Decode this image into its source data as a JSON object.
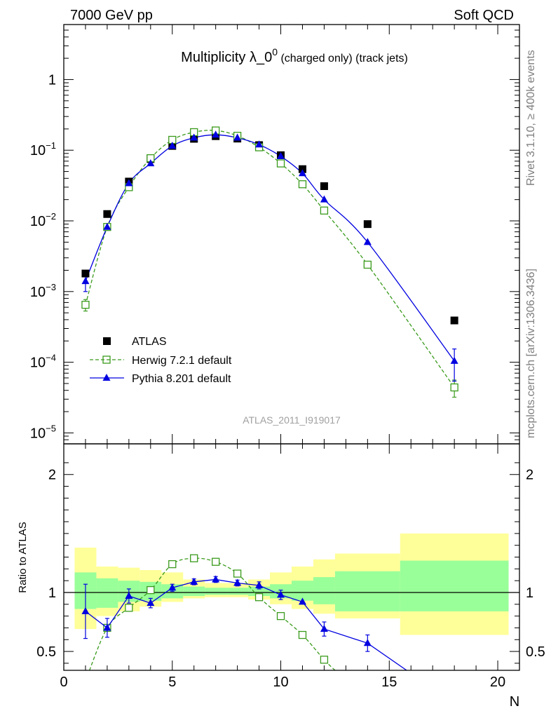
{
  "header": {
    "left": "7000 GeV pp",
    "right": "Soft QCD"
  },
  "side": {
    "rivet": "Rivet 3.1.10, ≥ 400k events",
    "mcplots": "mcplots.cern.ch [arXiv:1306.3436]"
  },
  "chart_data": [
    {
      "type": "scatter",
      "title_main": "Multiplicity λ_0",
      "title_sup": "0",
      "title_tail": " (charged only) (track jets)",
      "analysis_label": "ATLAS_2011_I919017",
      "xlabel": "N",
      "ylabel": "",
      "log_y": true,
      "xlim": [
        0,
        21
      ],
      "ylim": [
        7e-06,
        6
      ],
      "y_ticks": [
        "10^-5",
        "10^-4",
        "10^-3",
        "10^-2",
        "10^-1",
        "1"
      ],
      "legend_position": "lower-left",
      "series": [
        {
          "name": "ATLAS",
          "color": "#000000",
          "marker": "filled-square",
          "x": [
            1,
            2,
            3,
            4,
            5,
            6,
            7,
            8,
            9,
            10,
            11,
            12,
            14,
            18
          ],
          "y": [
            0.0018,
            0.0125,
            0.036,
            0.075,
            0.115,
            0.145,
            0.158,
            0.146,
            0.118,
            0.085,
            0.054,
            0.031,
            0.009,
            0.00039
          ]
        },
        {
          "name": "Herwig 7.2.1 default",
          "color": "#3a9a1c",
          "marker": "open-square",
          "line": "dashed",
          "x": [
            1,
            2,
            3,
            4,
            5,
            6,
            7,
            8,
            9,
            10,
            11,
            12,
            14,
            18
          ],
          "y": [
            0.00065,
            0.0082,
            0.03,
            0.077,
            0.14,
            0.18,
            0.19,
            0.16,
            0.11,
            0.065,
            0.033,
            0.014,
            0.0024,
            4.4e-05
          ],
          "yerr": [
            0.00012,
            0,
            0,
            0,
            0,
            0,
            0,
            0,
            0,
            0,
            0,
            0,
            0,
            1.2e-05
          ]
        },
        {
          "name": "Pythia 8.201 default",
          "color": "#0000e0",
          "marker": "filled-triangle",
          "line": "solid",
          "x": [
            1,
            2,
            3,
            4,
            5,
            6,
            7,
            8,
            9,
            10,
            11,
            12,
            14,
            18
          ],
          "y": [
            0.0014,
            0.0082,
            0.034,
            0.065,
            0.115,
            0.15,
            0.165,
            0.15,
            0.12,
            0.082,
            0.047,
            0.02,
            0.005,
            0.000104
          ],
          "yerr": [
            0.0004,
            0,
            0,
            0,
            0,
            0,
            0,
            0,
            0,
            0,
            0,
            0,
            0,
            5e-05
          ]
        }
      ]
    },
    {
      "type": "line",
      "ylabel": "Ratio to ATLAS",
      "xlabel": "N",
      "xlim": [
        0,
        21
      ],
      "ylim": [
        0.34,
        2.26
      ],
      "x_ticks": [
        0,
        5,
        10,
        15,
        20
      ],
      "y_ticks": [
        0.5,
        1,
        2
      ],
      "bands": {
        "edges": [
          0.5,
          1.5,
          2.5,
          3.5,
          4.5,
          5.5,
          6.5,
          7.5,
          8.5,
          9.5,
          10.5,
          11.5,
          12.5,
          15.5,
          20.5
        ],
        "inner_lo": [
          0.86,
          0.87,
          0.92,
          0.93,
          0.95,
          0.97,
          0.98,
          0.98,
          0.97,
          0.95,
          0.93,
          0.9,
          0.84,
          0.84
        ],
        "inner_hi": [
          1.17,
          1.12,
          1.1,
          1.09,
          1.07,
          1.05,
          1.04,
          1.04,
          1.05,
          1.07,
          1.1,
          1.13,
          1.18,
          1.27
        ],
        "outer_lo": [
          0.69,
          0.8,
          0.84,
          0.88,
          0.92,
          0.95,
          0.96,
          0.96,
          0.94,
          0.9,
          0.86,
          0.82,
          0.78,
          0.64
        ],
        "outer_hi": [
          1.38,
          1.22,
          1.21,
          1.19,
          1.17,
          1.11,
          1.08,
          1.08,
          1.11,
          1.17,
          1.22,
          1.28,
          1.33,
          1.5
        ]
      },
      "series": [
        {
          "name": "Herwig 7.2.1 default",
          "color": "#3a9a1c",
          "marker": "open-square",
          "line": "dashed",
          "x": [
            1,
            2,
            3,
            4,
            5,
            6,
            7,
            8,
            9,
            10,
            11,
            12,
            12.5
          ],
          "y": [
            0.25,
            0.7,
            0.87,
            1.02,
            1.24,
            1.29,
            1.26,
            1.16,
            0.96,
            0.8,
            0.64,
            0.43,
            0.34
          ],
          "markers_shown": 12
        },
        {
          "name": "Pythia 8.201 default",
          "color": "#0000e0",
          "marker": "filled-triangle",
          "line": "solid",
          "x": [
            1,
            2,
            3,
            4,
            5,
            6,
            7,
            8,
            9,
            10,
            11,
            12,
            14,
            15.8
          ],
          "y": [
            0.84,
            0.7,
            0.97,
            0.91,
            1.04,
            1.09,
            1.11,
            1.08,
            1.06,
            0.98,
            0.92,
            0.69,
            0.57,
            0.34
          ],
          "yerr": [
            0.23,
            0.08,
            0.06,
            0.04,
            0.03,
            0.025,
            0.025,
            0.025,
            0.03,
            0.04,
            0,
            0.06,
            0.07,
            0
          ],
          "markers_shown": 13
        }
      ]
    }
  ]
}
